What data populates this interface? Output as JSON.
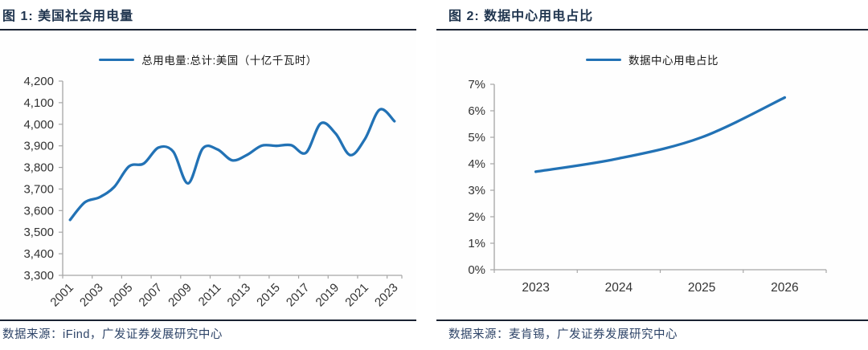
{
  "colors": {
    "navy_text": "#20354f",
    "rule_navy": "#1a2332",
    "line_blue": "#2272b5",
    "axis_gray": "#a6a6a6",
    "tick_text": "#333333",
    "footer_text": "#2e4468"
  },
  "panels": [
    {
      "title": "图 1: 美国社会用电量",
      "legend": "总用电量:总计:美国（十亿千瓦时）",
      "source": "数据来源：iFind，广发证券发展研究中心"
    },
    {
      "title": "图 2: 数据中心用电占比",
      "legend": "数据中心用电占比",
      "source": "数据来源：麦肯锡，广发证券发展研究中心"
    }
  ],
  "chart_data": [
    {
      "type": "line",
      "title": "美国社会用电量",
      "series_name": "总用电量:总计:美国（十亿千瓦时）",
      "unit": "十亿千瓦时",
      "smooth": true,
      "grid": false,
      "legend_position": "top",
      "categories": [
        2001,
        2002,
        2003,
        2004,
        2005,
        2006,
        2007,
        2008,
        2009,
        2010,
        2011,
        2012,
        2013,
        2014,
        2015,
        2016,
        2017,
        2018,
        2019,
        2020,
        2021,
        2022,
        2023
      ],
      "values": [
        3557,
        3638,
        3662,
        3710,
        3805,
        3818,
        3892,
        3873,
        3726,
        3888,
        3883,
        3833,
        3858,
        3901,
        3900,
        3903,
        3868,
        4004,
        3958,
        3857,
        3932,
        4068,
        4014
      ],
      "ylim": [
        3300,
        4200
      ],
      "ytick_values": [
        3300,
        3400,
        3500,
        3600,
        3700,
        3800,
        3900,
        4000,
        4100,
        4200
      ],
      "ytick_labels": [
        "3,300",
        "3,400",
        "3,500",
        "3,600",
        "3,700",
        "3,800",
        "3,900",
        "4,000",
        "4,100",
        "4,200"
      ],
      "xtick_indices": [
        0,
        2,
        4,
        6,
        8,
        10,
        12,
        14,
        16,
        18,
        20,
        22
      ],
      "xtick_labels": [
        "2001",
        "2003",
        "2005",
        "2007",
        "2009",
        "2011",
        "2013",
        "2015",
        "2017",
        "2019",
        "2021",
        "2023"
      ],
      "x_label_rotation": -45
    },
    {
      "type": "line",
      "title": "数据中心用电占比",
      "series_name": "数据中心用电占比",
      "unit": "%",
      "smooth": true,
      "grid": false,
      "legend_position": "top",
      "categories": [
        2023,
        2024,
        2025,
        2026
      ],
      "values": [
        3.7,
        4.2,
        5.0,
        6.5
      ],
      "ylim": [
        0,
        7
      ],
      "ytick_values": [
        0,
        1,
        2,
        3,
        4,
        5,
        6,
        7
      ],
      "ytick_labels": [
        "0%",
        "1%",
        "2%",
        "3%",
        "4%",
        "5%",
        "6%",
        "7%"
      ],
      "xtick_indices": [
        0,
        1,
        2,
        3
      ],
      "xtick_labels": [
        "2023",
        "2024",
        "2025",
        "2026"
      ],
      "x_label_rotation": 0
    }
  ]
}
